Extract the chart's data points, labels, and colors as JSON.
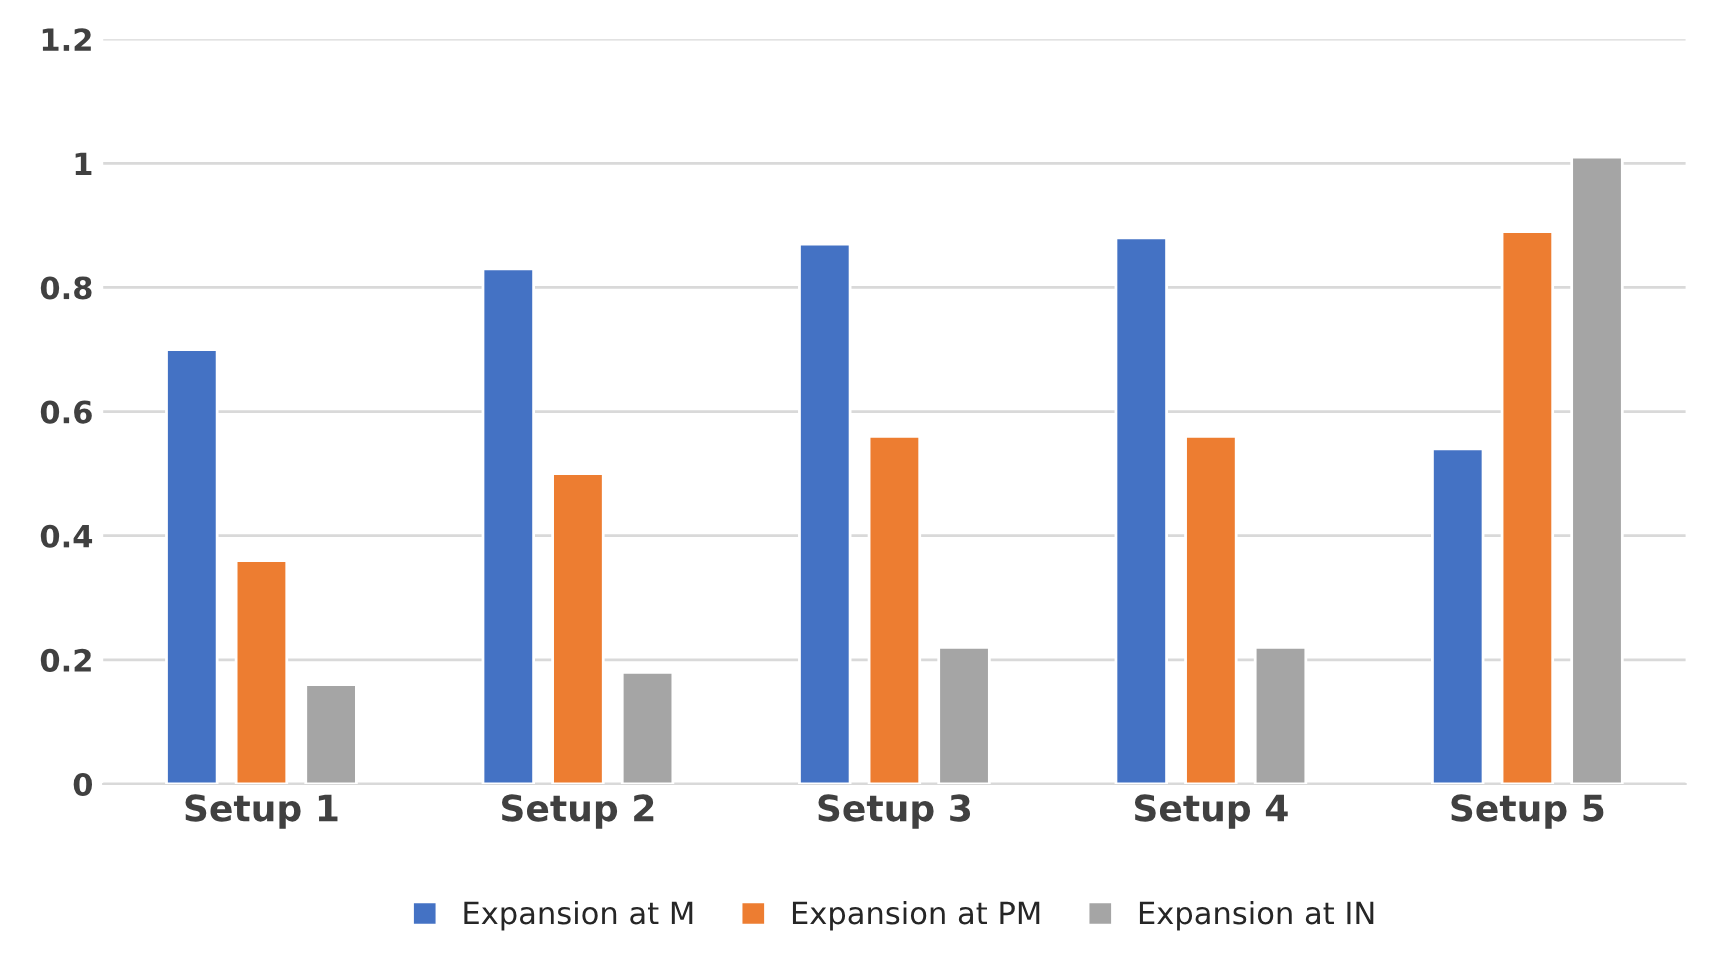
{
  "chart_data": {
    "type": "bar",
    "categories": [
      "Setup 1",
      "Setup 2",
      "Setup 3",
      "Setup 4",
      "Setup 5"
    ],
    "series": [
      {
        "name": "Expansion at M",
        "color": "#4472c4",
        "values": [
          0.7,
          0.83,
          0.87,
          0.88,
          0.54
        ]
      },
      {
        "name": "Expansion at PM",
        "color": "#ed7d31",
        "values": [
          0.36,
          0.5,
          0.56,
          0.56,
          0.89
        ]
      },
      {
        "name": "Expansion at IN",
        "color": "#a5a5a5",
        "values": [
          0.16,
          0.18,
          0.22,
          0.22,
          1.01
        ]
      }
    ],
    "ylim": [
      0,
      1.2
    ],
    "yticks": [
      0,
      0.2,
      0.4,
      0.6,
      0.8,
      1,
      1.2
    ],
    "grid": "y",
    "legend": "bottom"
  }
}
